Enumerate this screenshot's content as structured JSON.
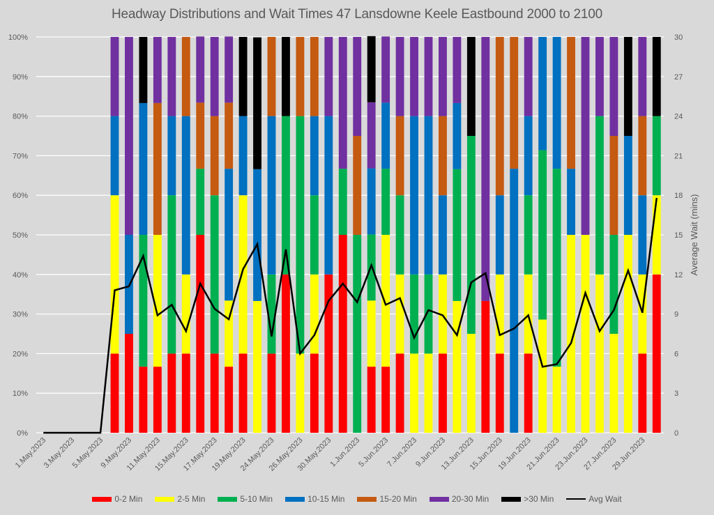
{
  "chart_data": {
    "type": "bar",
    "subtype": "stacked-percent-with-line",
    "title": "Headway Distributions and Wait Times 47 Lansdowne  Keele Eastbound 2000 to 2100",
    "xlabel": "",
    "ylabel": "",
    "ylabel_right": "Average Wait (mins)",
    "ylim": [
      0,
      1
    ],
    "ylim_right": [
      0,
      30
    ],
    "yticks": [
      "0%",
      "10%",
      "20%",
      "30%",
      "40%",
      "50%",
      "60%",
      "70%",
      "80%",
      "90%",
      "100%"
    ],
    "yticks_right": [
      "0",
      "3",
      "6",
      "9",
      "12",
      "15",
      "18",
      "21",
      "24",
      "27",
      "30"
    ],
    "grid": true,
    "legend_position": "bottom",
    "categories": [
      "1.May.2023",
      "2.May.2023",
      "3.May.2023",
      "4.May.2023",
      "5.May.2023",
      "8.May.2023",
      "9.May.2023",
      "10.May.2023",
      "11.May.2023",
      "12.May.2023",
      "15.May.2023",
      "16.May.2023",
      "17.May.2023",
      "18.May.2023",
      "19.May.2023",
      "23.May.2023",
      "24.May.2023",
      "25.May.2023",
      "26.May.2023",
      "29.May.2023",
      "30.May.2023",
      "31.May.2023",
      "1.Jun.2023",
      "2.Jun.2023",
      "5.Jun.2023",
      "6.Jun.2023",
      "7.Jun.2023",
      "8.Jun.2023",
      "9.Jun.2023",
      "12.Jun.2023",
      "13.Jun.2023",
      "14.Jun.2023",
      "15.Jun.2023",
      "16.Jun.2023",
      "19.Jun.2023",
      "20.Jun.2023",
      "21.Jun.2023",
      "22.Jun.2023",
      "23.Jun.2023",
      "26.Jun.2023",
      "27.Jun.2023",
      "28.Jun.2023",
      "29.Jun.2023",
      "30.Jun.2023"
    ],
    "shown_xtick_labels": [
      "1.May.2023",
      "3.May.2023",
      "5.May.2023",
      "9.May.2023",
      "11.May.2023",
      "15.May.2023",
      "17.May.2023",
      "19.May.2023",
      "24.May.2023",
      "26.May.2023",
      "30.May.2023",
      "1.Jun.2023",
      "5.Jun.2023",
      "7.Jun.2023",
      "9.Jun.2023",
      "13.Jun.2023",
      "15.Jun.2023",
      "19.Jun.2023",
      "21.Jun.2023",
      "23.Jun.2023",
      "27.Jun.2023",
      "29.Jun.2023"
    ],
    "series": [
      {
        "name": "0-2 Min",
        "color": "#ff0000",
        "values": [
          0,
          0,
          0,
          0,
          0,
          0.2,
          0.25,
          0.167,
          0.167,
          0.2,
          0.2,
          0.5,
          0.2,
          0.167,
          0.2,
          0,
          0.2,
          0.4,
          0,
          0.2,
          0.4,
          0.5,
          0,
          0.167,
          0.167,
          0.2,
          0,
          0,
          0.2,
          0,
          0,
          0.333,
          0.2,
          0,
          0.2,
          0,
          0,
          0,
          0,
          0,
          0,
          0,
          0.2,
          0.4
        ]
      },
      {
        "name": "2-5 Min",
        "color": "#ffff00",
        "values": [
          0,
          0,
          0,
          0,
          0,
          0.4,
          0,
          0,
          0.333,
          0,
          0.2,
          0,
          0,
          0.167,
          0.4,
          0.333,
          0,
          0,
          0.2,
          0.2,
          0,
          0,
          0,
          0.167,
          0.333,
          0.2,
          0.2,
          0.2,
          0.2,
          0.333,
          0.25,
          0,
          0.2,
          0,
          0.2,
          0.286,
          0.167,
          0.5,
          0.5,
          0.4,
          0.25,
          0.5,
          0.2,
          0.2
        ]
      },
      {
        "name": "5-10 Min",
        "color": "#00b050",
        "values": [
          0,
          0,
          0,
          0,
          0,
          0,
          0,
          0.333,
          0,
          0.4,
          0,
          0.167,
          0.4,
          0,
          0,
          0,
          0.2,
          0.4,
          0.6,
          0.2,
          0,
          0.167,
          0.5,
          0.167,
          0.167,
          0.2,
          0.2,
          0.2,
          0,
          0.333,
          0.5,
          0,
          0,
          0,
          0.2,
          0.428,
          0.5,
          0,
          0,
          0.4,
          0.25,
          0,
          0,
          0.2
        ]
      },
      {
        "name": "10-15 Min",
        "color": "#0070c0",
        "values": [
          0,
          0,
          0,
          0,
          0,
          0.2,
          0.25,
          0.333,
          0,
          0.2,
          0.4,
          0,
          0,
          0.333,
          0.2,
          0.333,
          0.4,
          0,
          0,
          0.2,
          0.4,
          0,
          0,
          0.167,
          0.167,
          0,
          0.4,
          0.4,
          0.2,
          0.167,
          0,
          0,
          0.2,
          0.667,
          0.2,
          0.286,
          0.333,
          0.167,
          0,
          0,
          0,
          0.25,
          0.2,
          0
        ]
      },
      {
        "name": "15-20 Min",
        "color": "#c55a11",
        "values": [
          0,
          0,
          0,
          0,
          0,
          0,
          0,
          0,
          0.333,
          0,
          0.2,
          0.167,
          0.2,
          0.167,
          0,
          0,
          0.2,
          0,
          0.2,
          0.2,
          0,
          0,
          0.25,
          0,
          0,
          0.2,
          0,
          0,
          0.2,
          0,
          0,
          0,
          0.4,
          0.333,
          0,
          0,
          0,
          0.333,
          0,
          0,
          0.25,
          0,
          0.2,
          0
        ]
      },
      {
        "name": "20-30 Min",
        "color": "#7030a0",
        "values": [
          0,
          0,
          0,
          0,
          0,
          0.2,
          0.5,
          0,
          0.167,
          0.2,
          0,
          0.167,
          0.2,
          0.167,
          0,
          0,
          0,
          0,
          0,
          0,
          0.2,
          0.333,
          0.25,
          0.167,
          0.167,
          0.2,
          0.2,
          0.2,
          0.2,
          0.167,
          0,
          0.667,
          0,
          0,
          0.2,
          0,
          0,
          0,
          0.5,
          0.2,
          0.25,
          0,
          0.2,
          0
        ]
      },
      {
        "name": ">30 Min",
        "color": "#000000",
        "values": [
          0,
          0,
          0,
          0,
          0,
          0,
          0,
          0.167,
          0,
          0,
          0,
          0,
          0,
          0,
          0.2,
          0.333,
          0,
          0.2,
          0,
          0,
          0,
          0,
          0,
          0.167,
          0,
          0,
          0,
          0,
          0,
          0,
          0.25,
          0,
          0,
          0,
          0,
          0,
          0,
          0,
          0,
          0,
          0,
          0.25,
          0,
          0.2
        ]
      }
    ],
    "line_series": {
      "name": "Avg Wait",
      "color": "#000000",
      "axis": "right",
      "values": [
        0,
        0,
        0,
        0,
        0,
        10.8,
        11.1,
        13.4,
        8.9,
        9.7,
        7.7,
        11.3,
        9.4,
        8.6,
        12.4,
        14.3,
        7.3,
        13.9,
        6.0,
        7.4,
        10.0,
        11.3,
        9.9,
        12.7,
        9.7,
        10.2,
        7.2,
        9.3,
        8.9,
        7.4,
        11.4,
        12.1,
        7.4,
        7.9,
        8.9,
        5.0,
        5.2,
        6.8,
        10.6,
        7.7,
        9.3,
        12.3,
        9.1,
        17.8
      ]
    }
  },
  "legend": [
    {
      "label": "0-2 Min",
      "color": "#ff0000",
      "kind": "swatch"
    },
    {
      "label": "2-5 Min",
      "color": "#ffff00",
      "kind": "swatch"
    },
    {
      "label": "5-10 Min",
      "color": "#00b050",
      "kind": "swatch"
    },
    {
      "label": "10-15 Min",
      "color": "#0070c0",
      "kind": "swatch"
    },
    {
      "label": "15-20 Min",
      "color": "#c55a11",
      "kind": "swatch"
    },
    {
      "label": "20-30 Min",
      "color": "#7030a0",
      "kind": "swatch"
    },
    {
      "label": ">30 Min",
      "color": "#000000",
      "kind": "swatch"
    },
    {
      "label": "Avg Wait",
      "color": "#000000",
      "kind": "line"
    }
  ]
}
